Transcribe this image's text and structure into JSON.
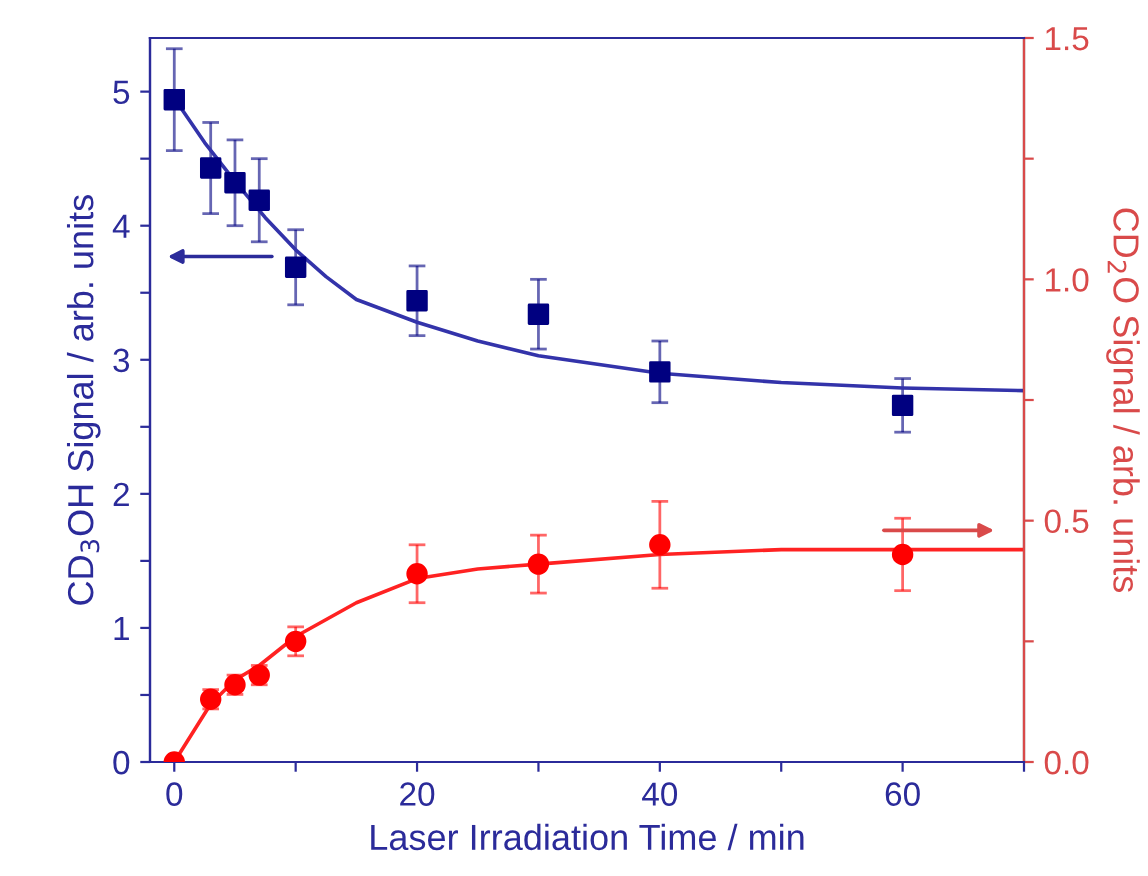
{
  "chart_data": {
    "type": "scatter",
    "xlabel": "Laser Irradiation Time / min",
    "ylabel": "CD$_{3}$OH Signal / arb. units",
    "y2label": "CD$_{2}$O Signal / arb. units",
    "xlim": [
      -2,
      70
    ],
    "xticks": [
      0,
      {
        "value": 10,
        "label": null
      },
      20,
      {
        "value": 30,
        "label": null
      },
      40,
      {
        "value": 50,
        "label": null
      },
      60,
      {
        "value": 70,
        "label": null
      }
    ],
    "ylim": [
      0,
      5.4
    ],
    "yticks": [
      0,
      {
        "value": 0.5,
        "label": null
      },
      1,
      {
        "value": 1.5,
        "label": null
      },
      2,
      {
        "value": 2.5,
        "label": null
      },
      3,
      {
        "value": 3.5,
        "label": null
      },
      4,
      {
        "value": 4.5,
        "label": null
      },
      5
    ],
    "y2lim": [
      0,
      1.5
    ],
    "y2ticks": [
      {
        "value": 0,
        "label": "0.0"
      },
      {
        "value": 0.25,
        "label": null
      },
      {
        "value": 0.5,
        "label": "0.5"
      },
      {
        "value": 0.75,
        "label": null
      },
      {
        "value": 1.0,
        "label": "1.0"
      },
      {
        "value": 1.25,
        "label": null
      },
      {
        "value": 1.5,
        "label": "1.5"
      }
    ],
    "grid": false,
    "legend": false,
    "series": [
      {
        "color": "#000080",
        "marker": "square",
        "x": [
          0,
          3,
          5,
          7,
          10,
          20,
          30,
          40,
          60
        ],
        "values": [
          4.94,
          4.43,
          4.32,
          4.19,
          3.69,
          3.44,
          3.34,
          2.91,
          2.66
        ],
        "errors": [
          0.38,
          0.34,
          0.32,
          0.31,
          0.28,
          0.26,
          0.26,
          0.23,
          0.2
        ]
      },
      {
        "type": "line",
        "color": "#3333aa",
        "x": [
          0,
          2.5,
          5,
          7.5,
          10,
          12.5,
          15,
          20,
          25,
          30,
          40,
          50,
          60,
          70
        ],
        "values": [
          4.95,
          4.62,
          4.33,
          4.06,
          3.82,
          3.62,
          3.45,
          3.28,
          3.14,
          3.03,
          2.9,
          2.83,
          2.79,
          2.77
        ]
      },
      {
        "axis": "y2",
        "color": "#ff0000",
        "marker": "circle",
        "x": [
          0,
          3,
          5,
          7,
          10,
          20,
          30,
          40,
          60
        ],
        "values": [
          0,
          0.13,
          0.16,
          0.18,
          0.25,
          0.39,
          0.41,
          0.45,
          0.43
        ],
        "errors": [
          null,
          0.02,
          0.02,
          0.02,
          0.03,
          0.06,
          0.06,
          0.09,
          0.075
        ]
      },
      {
        "type": "line",
        "axis": "y2",
        "color": "#ff2222",
        "x": [
          0,
          3,
          5,
          7,
          10,
          15,
          20,
          25,
          30,
          40,
          50,
          60,
          70
        ],
        "values": [
          0,
          0.12,
          0.17,
          0.2,
          0.26,
          0.33,
          0.38,
          0.4,
          0.41,
          0.43,
          0.44,
          0.44,
          0.44
        ]
      }
    ]
  }
}
